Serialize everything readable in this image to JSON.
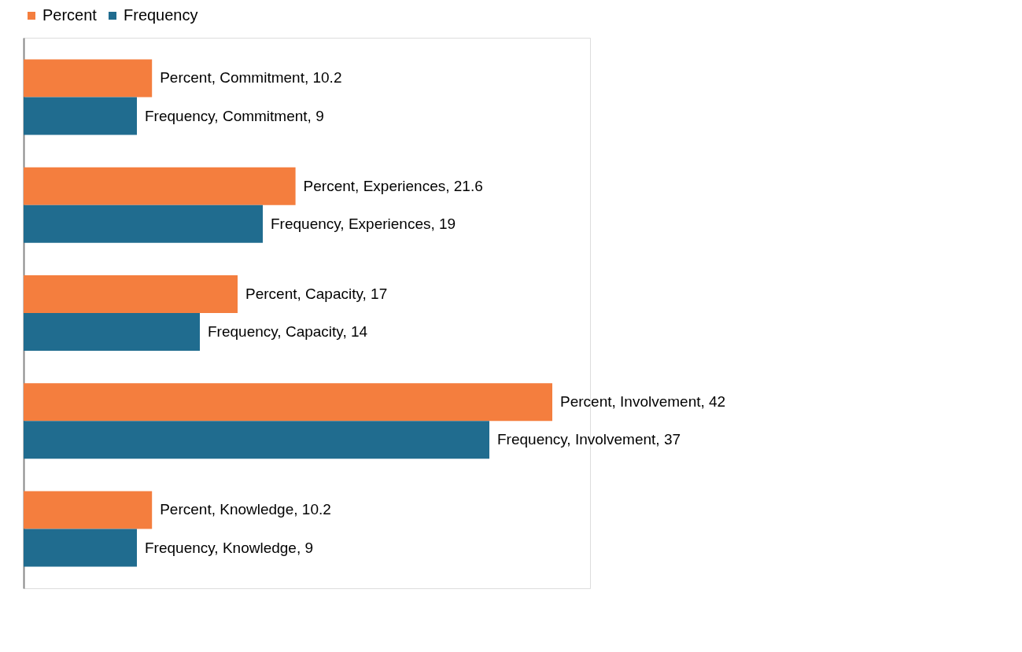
{
  "chart_data": {
    "type": "bar",
    "orientation": "horizontal",
    "categories": [
      null,
      null,
      null,
      null,
      null
    ],
    "series": [
      {
        "name": "Percent",
        "color": "#f47e3e",
        "values": [
          10.2,
          21.6,
          17,
          42,
          10.2
        ],
        "value_labels": [
          "Percent, Commitment, 10.2",
          "Percent, Experiences, 21.6",
          "Percent, Capacity, 17",
          "Percent, Involvement, 42",
          "Percent, Knowledge, 10.2"
        ]
      },
      {
        "name": "Frequency",
        "color": "#206c8f",
        "values": [
          9,
          19,
          14,
          37,
          9
        ],
        "value_labels": [
          "Frequency, Commitment, 9",
          "Frequency, Experiences, 19",
          "Frequency, Capacity, 14",
          "Frequency, Involvement, 37",
          "Frequency, Knowledge, 9"
        ]
      }
    ],
    "legend": "top",
    "grid": false,
    "tick_labels": false
  }
}
